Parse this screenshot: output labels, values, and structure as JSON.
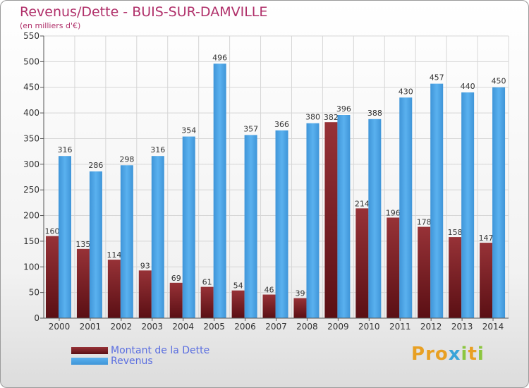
{
  "header": {
    "title": "Revenus/Dette - BUIS-SUR-DAMVILLE",
    "subtitle": "(en milliers d'€)"
  },
  "legend": {
    "debt_label": "Montant de la Dette",
    "revenue_label": "Revenus"
  },
  "logo": {
    "text": "Proxiti"
  },
  "colors": {
    "debt": "#7a1f25",
    "revenue": "#4aa3e6",
    "axis_text": "#333333",
    "grid": "#d6d6d6"
  },
  "chart_data": {
    "type": "bar",
    "title": "Revenus/Dette - BUIS-SUR-DAMVILLE",
    "subtitle": "(en milliers d'€)",
    "xlabel": "",
    "ylabel": "",
    "ylim": [
      0,
      550
    ],
    "yticks": [
      0,
      50,
      100,
      150,
      200,
      250,
      300,
      350,
      400,
      450,
      500,
      550
    ],
    "grid": true,
    "legend_position": "bottom-left",
    "categories": [
      "2000",
      "2001",
      "2002",
      "2003",
      "2004",
      "2005",
      "2006",
      "2007",
      "2008",
      "2009",
      "2010",
      "2011",
      "2012",
      "2013",
      "2014"
    ],
    "series": [
      {
        "name": "Montant de la Dette",
        "values": [
          160,
          135,
          114,
          93,
          69,
          61,
          54,
          46,
          39,
          382,
          214,
          196,
          178,
          158,
          147
        ]
      },
      {
        "name": "Revenus",
        "values": [
          316,
          286,
          298,
          316,
          354,
          496,
          357,
          366,
          380,
          396,
          388,
          430,
          457,
          440,
          450
        ]
      }
    ]
  }
}
